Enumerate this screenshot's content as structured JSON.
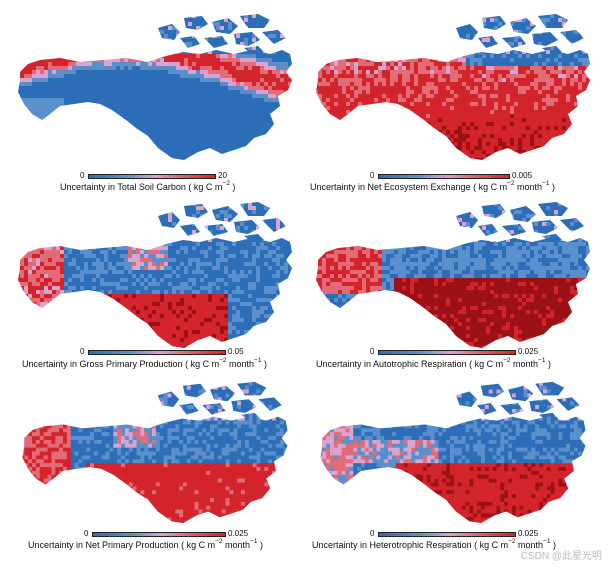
{
  "colors": {
    "low": "#2c6db8",
    "mid": "#d8a4cf",
    "high": "#d3232b",
    "very_high": "#9b1116"
  },
  "panels": [
    {
      "id": "soil-carbon",
      "cbar_min": "0",
      "cbar_max": "20",
      "caption_main": "Uncertainty in Total Soil Carbon",
      "caption_unit_pre": "( kg C  m",
      "caption_exp1": "−2",
      "caption_unit_mid": "",
      "caption_exp2": "",
      "caption_unit_post": " )",
      "pattern": "soil"
    },
    {
      "id": "nee",
      "cbar_min": "0",
      "cbar_max": "0.005",
      "caption_main": "Uncertainty in Net Ecosystem Exchange",
      "caption_unit_pre": "( kg C  m",
      "caption_exp1": "−2",
      "caption_unit_mid": " month",
      "caption_exp2": "−1",
      "caption_unit_post": " )",
      "pattern": "nee"
    },
    {
      "id": "gpp",
      "cbar_min": "0",
      "cbar_max": "0.05",
      "caption_main": "Uncertainty in Gross Primary Production",
      "caption_unit_pre": "( kg C  m",
      "caption_exp1": "−2",
      "caption_unit_mid": " month",
      "caption_exp2": "−1",
      "caption_unit_post": " )",
      "pattern": "gpp"
    },
    {
      "id": "autotrophic",
      "cbar_min": "0",
      "cbar_max": "0.025",
      "caption_main": "Uncertainty in Autotrophic Respiration",
      "caption_unit_pre": "( kg C  m",
      "caption_exp1": "−2",
      "caption_unit_mid": " month",
      "caption_exp2": "−1",
      "caption_unit_post": " )",
      "pattern": "auto"
    },
    {
      "id": "npp",
      "cbar_min": "0",
      "cbar_max": "0.025",
      "caption_main": "Uncertainty in Net Primary Production",
      "caption_unit_pre": "( kg C  m",
      "caption_exp1": "−2",
      "caption_unit_mid": " month",
      "caption_exp2": "−1",
      "caption_unit_post": " )",
      "pattern": "npp"
    },
    {
      "id": "heterotrophic",
      "cbar_min": "0",
      "cbar_max": "0.025",
      "caption_main": "Uncertainty in Heterotrophic Respiration",
      "caption_unit_pre": "( kg C  m",
      "caption_exp1": "−2",
      "caption_unit_mid": " month",
      "caption_exp2": "−1",
      "caption_unit_post": " )",
      "pattern": "het"
    }
  ],
  "watermark": "CSDN @此星光明"
}
